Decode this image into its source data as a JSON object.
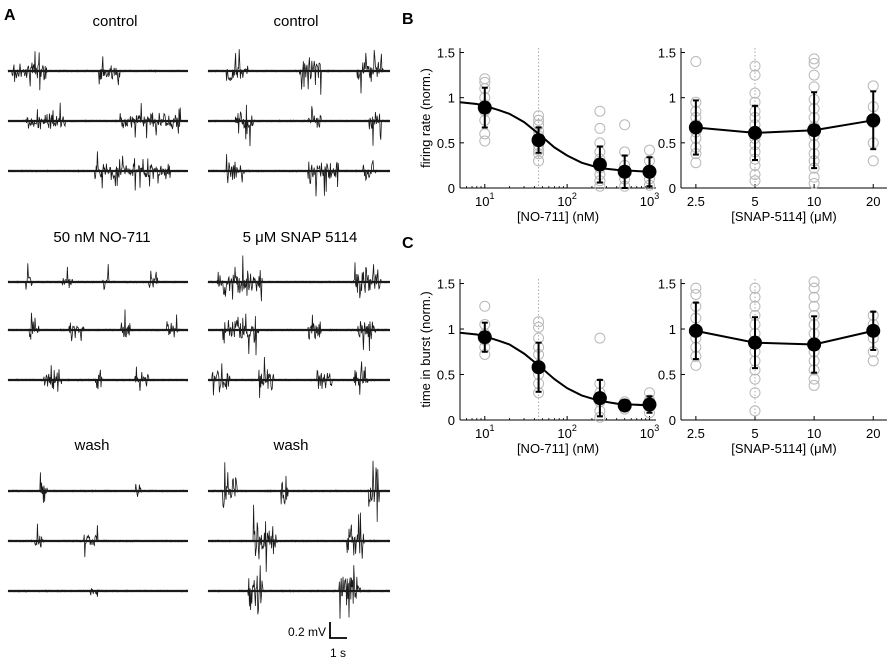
{
  "panel_labels": {
    "a": "A",
    "b": "B",
    "c": "C"
  },
  "traces": {
    "col1_titles": [
      "control",
      "50 nM NO-711",
      "wash"
    ],
    "col2_titles": [
      "control",
      "5 μM SNAP 5114",
      "wash"
    ],
    "scale_bar": {
      "amplitude": "0.2 mV",
      "time": "1 s"
    }
  },
  "colors": {
    "trace": "#1a1a1a",
    "individual_points": "#b8b8b8",
    "mean": "#000000",
    "dotted_ref": "#aaaaaa"
  },
  "chart_data": [
    {
      "id": "B-left",
      "type": "scatter",
      "xscale": "log",
      "xlim": [
        5,
        1200
      ],
      "ylim": [
        0,
        1.55
      ],
      "xticks": [
        10,
        100,
        1000
      ],
      "xtick_labels": [
        "10",
        "10",
        "10"
      ],
      "xtick_exps": [
        "1",
        "2",
        "3"
      ],
      "yticks": [
        0,
        0.5,
        1,
        1.5
      ],
      "ytick_labels": [
        "0",
        "0.5",
        "1",
        "1.5"
      ],
      "xlabel": "[NO-711] (nM)",
      "ylabel": "firing rate (norm.)",
      "reference_line_x": 45,
      "mean": {
        "x": [
          10,
          45,
          250,
          500,
          1000
        ],
        "y": [
          0.89,
          0.53,
          0.26,
          0.18,
          0.18
        ],
        "err": [
          0.22,
          0.14,
          0.2,
          0.18,
          0.16
        ]
      },
      "fit_curve": {
        "x": [
          5,
          8,
          10,
          15,
          20,
          30,
          45,
          70,
          100,
          150,
          250,
          400,
          600,
          1000,
          1200
        ],
        "y": [
          0.95,
          0.93,
          0.91,
          0.86,
          0.82,
          0.73,
          0.6,
          0.45,
          0.36,
          0.28,
          0.22,
          0.2,
          0.19,
          0.18,
          0.18
        ]
      },
      "individual": [
        [
          10,
          1.21
        ],
        [
          10,
          1.17
        ],
        [
          10,
          1.1
        ],
        [
          10,
          1.0
        ],
        [
          10,
          0.92
        ],
        [
          10,
          0.85
        ],
        [
          10,
          0.75
        ],
        [
          10,
          0.6
        ],
        [
          10,
          0.52
        ],
        [
          45,
          0.8
        ],
        [
          45,
          0.75
        ],
        [
          45,
          0.7
        ],
        [
          45,
          0.63
        ],
        [
          45,
          0.58
        ],
        [
          45,
          0.52
        ],
        [
          45,
          0.47
        ],
        [
          45,
          0.42
        ],
        [
          45,
          0.38
        ],
        [
          45,
          0.3
        ],
        [
          250,
          0.85
        ],
        [
          250,
          0.66
        ],
        [
          250,
          0.5
        ],
        [
          250,
          0.4
        ],
        [
          250,
          0.32
        ],
        [
          250,
          0.22
        ],
        [
          250,
          0.15
        ],
        [
          250,
          0.08
        ],
        [
          250,
          0.02
        ],
        [
          500,
          0.7
        ],
        [
          500,
          0.4
        ],
        [
          500,
          0.25
        ],
        [
          500,
          0.1
        ],
        [
          500,
          0.02
        ],
        [
          1000,
          0.42
        ],
        [
          1000,
          0.3
        ],
        [
          1000,
          0.2
        ],
        [
          1000,
          0.1
        ],
        [
          1000,
          0.03
        ]
      ]
    },
    {
      "id": "B-right",
      "type": "scatter",
      "xscale": "log",
      "xlim": [
        2.1,
        23.5
      ],
      "ylim": [
        0,
        1.55
      ],
      "xticks": [
        2.5,
        5,
        10,
        20
      ],
      "xtick_labels": [
        "2.5",
        "5",
        "10",
        "20"
      ],
      "yticks": [
        0,
        0.5,
        1,
        1.5
      ],
      "ytick_labels": [
        "0",
        "0.5",
        "1",
        "1.5"
      ],
      "xlabel": "[SNAP-5114] (μM)",
      "ylabel": "",
      "reference_line_x": 5,
      "mean": {
        "x": [
          2.5,
          5,
          10,
          20
        ],
        "y": [
          0.67,
          0.61,
          0.64,
          0.75
        ],
        "err": [
          0.3,
          0.3,
          0.42,
          0.32
        ]
      },
      "fit_curve": null,
      "individual": [
        [
          2.5,
          1.4
        ],
        [
          2.5,
          0.95
        ],
        [
          2.5,
          0.85
        ],
        [
          2.5,
          0.78
        ],
        [
          2.5,
          0.7
        ],
        [
          2.5,
          0.62
        ],
        [
          2.5,
          0.55
        ],
        [
          2.5,
          0.45
        ],
        [
          2.5,
          0.38
        ],
        [
          2.5,
          0.28
        ],
        [
          5,
          1.35
        ],
        [
          5,
          1.25
        ],
        [
          5,
          1.05
        ],
        [
          5,
          0.95
        ],
        [
          5,
          0.85
        ],
        [
          5,
          0.78
        ],
        [
          5,
          0.7
        ],
        [
          5,
          0.62
        ],
        [
          5,
          0.55
        ],
        [
          5,
          0.48
        ],
        [
          5,
          0.4
        ],
        [
          5,
          0.32
        ],
        [
          5,
          0.25
        ],
        [
          5,
          0.15
        ],
        [
          5,
          0.08
        ],
        [
          10,
          1.43
        ],
        [
          10,
          1.38
        ],
        [
          10,
          1.25
        ],
        [
          10,
          1.12
        ],
        [
          10,
          0.98
        ],
        [
          10,
          0.88
        ],
        [
          10,
          0.78
        ],
        [
          10,
          0.68
        ],
        [
          10,
          0.58
        ],
        [
          10,
          0.48
        ],
        [
          10,
          0.38
        ],
        [
          10,
          0.3
        ],
        [
          10,
          0.22
        ],
        [
          10,
          0.12
        ],
        [
          10,
          0.05
        ],
        [
          20,
          1.13
        ],
        [
          20,
          0.9
        ],
        [
          20,
          0.72
        ],
        [
          20,
          0.5
        ],
        [
          20,
          0.3
        ]
      ]
    },
    {
      "id": "C-left",
      "type": "scatter",
      "xscale": "log",
      "xlim": [
        5,
        1200
      ],
      "ylim": [
        0,
        1.55
      ],
      "xticks": [
        10,
        100,
        1000
      ],
      "xtick_labels": [
        "10",
        "10",
        "10"
      ],
      "xtick_exps": [
        "1",
        "2",
        "3"
      ],
      "yticks": [
        0,
        0.5,
        1,
        1.5
      ],
      "ytick_labels": [
        "0",
        "0.5",
        "1",
        "1.5"
      ],
      "xlabel": "[NO-711] (nM)",
      "ylabel": "time in burst (norm.)",
      "reference_line_x": 45,
      "mean": {
        "x": [
          10,
          45,
          250,
          500,
          1000
        ],
        "y": [
          0.91,
          0.58,
          0.24,
          0.16,
          0.17
        ],
        "err": [
          0.16,
          0.27,
          0.2,
          0.04,
          0.09
        ]
      },
      "fit_curve": {
        "x": [
          5,
          8,
          10,
          15,
          20,
          30,
          45,
          70,
          100,
          150,
          250,
          400,
          600,
          1000,
          1200
        ],
        "y": [
          0.96,
          0.94,
          0.92,
          0.87,
          0.83,
          0.73,
          0.6,
          0.45,
          0.35,
          0.27,
          0.21,
          0.18,
          0.17,
          0.16,
          0.16
        ]
      },
      "individual": [
        [
          10,
          1.25
        ],
        [
          10,
          1.05
        ],
        [
          10,
          0.95
        ],
        [
          10,
          0.88
        ],
        [
          10,
          0.8
        ],
        [
          10,
          0.72
        ],
        [
          45,
          1.08
        ],
        [
          45,
          1.02
        ],
        [
          45,
          0.9
        ],
        [
          45,
          0.8
        ],
        [
          45,
          0.72
        ],
        [
          45,
          0.6
        ],
        [
          45,
          0.5
        ],
        [
          45,
          0.4
        ],
        [
          45,
          0.3
        ],
        [
          250,
          0.9
        ],
        [
          250,
          0.4
        ],
        [
          250,
          0.3
        ],
        [
          250,
          0.2
        ],
        [
          250,
          0.1
        ],
        [
          250,
          0.03
        ],
        [
          500,
          0.2
        ],
        [
          500,
          0.14
        ],
        [
          500,
          0.12
        ],
        [
          1000,
          0.3
        ],
        [
          1000,
          0.22
        ],
        [
          1000,
          0.15
        ],
        [
          1000,
          0.08
        ]
      ]
    },
    {
      "id": "C-right",
      "type": "scatter",
      "xscale": "log",
      "xlim": [
        2.1,
        23.5
      ],
      "ylim": [
        0,
        1.55
      ],
      "xticks": [
        2.5,
        5,
        10,
        20
      ],
      "xtick_labels": [
        "2.5",
        "5",
        "10",
        "20"
      ],
      "yticks": [
        0,
        0.5,
        1,
        1.5
      ],
      "ytick_labels": [
        "0",
        "0.5",
        "1",
        "1.5"
      ],
      "xlabel": "[SNAP-5114] (μM)",
      "ylabel": "",
      "reference_line_x": 5,
      "mean": {
        "x": [
          2.5,
          5,
          10,
          20
        ],
        "y": [
          0.98,
          0.85,
          0.83,
          0.98
        ],
        "err": [
          0.31,
          0.28,
          0.31,
          0.21
        ]
      },
      "fit_curve": null,
      "individual": [
        [
          2.5,
          1.45
        ],
        [
          2.5,
          1.38
        ],
        [
          2.5,
          1.25
        ],
        [
          2.5,
          1.12
        ],
        [
          2.5,
          1.0
        ],
        [
          2.5,
          0.9
        ],
        [
          2.5,
          0.8
        ],
        [
          2.5,
          0.7
        ],
        [
          2.5,
          0.6
        ],
        [
          5,
          1.45
        ],
        [
          5,
          1.35
        ],
        [
          5,
          1.25
        ],
        [
          5,
          1.15
        ],
        [
          5,
          1.05
        ],
        [
          5,
          0.95
        ],
        [
          5,
          0.85
        ],
        [
          5,
          0.75
        ],
        [
          5,
          0.65
        ],
        [
          5,
          0.55
        ],
        [
          5,
          0.45
        ],
        [
          5,
          0.3
        ],
        [
          5,
          0.1
        ],
        [
          10,
          1.52
        ],
        [
          10,
          1.45
        ],
        [
          10,
          1.35
        ],
        [
          10,
          1.25
        ],
        [
          10,
          1.15
        ],
        [
          10,
          1.05
        ],
        [
          10,
          0.95
        ],
        [
          10,
          0.85
        ],
        [
          10,
          0.75
        ],
        [
          10,
          0.65
        ],
        [
          10,
          0.55
        ],
        [
          10,
          0.45
        ],
        [
          10,
          0.38
        ],
        [
          20,
          1.15
        ],
        [
          20,
          1.05
        ],
        [
          20,
          0.9
        ],
        [
          20,
          0.75
        ],
        [
          20,
          0.65
        ]
      ]
    }
  ]
}
